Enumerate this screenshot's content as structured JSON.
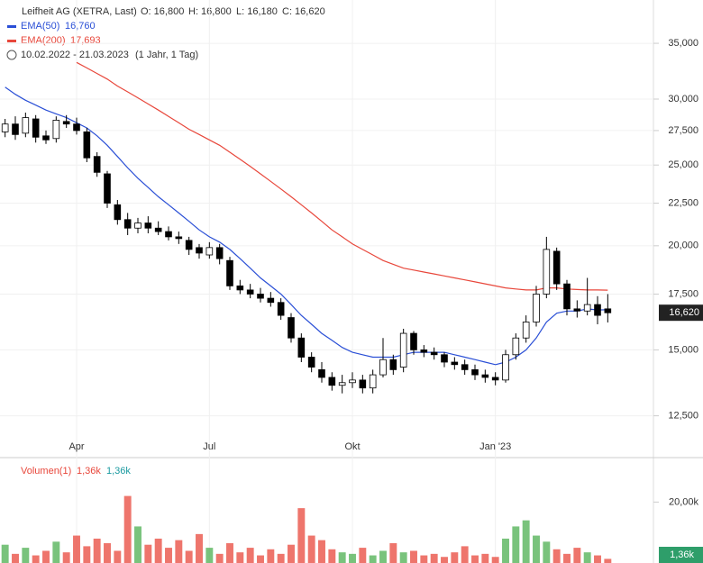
{
  "chart_data": [
    {
      "type": "candlestick",
      "title": "Leifheit AG (XETRA, Last)",
      "ohlc": {
        "open": "O: 16,800",
        "high": "H: 16,800",
        "low": "L: 16,180",
        "close": "C: 16,620"
      },
      "range": "10.02.2022 - 21.03.2023",
      "period": "(1 Jahr, 1 Tag)",
      "categories": [
        null,
        null,
        null,
        null,
        null,
        null,
        null,
        "Apr",
        null,
        null,
        null,
        null,
        null,
        null,
        null,
        null,
        null,
        null,
        null,
        null,
        "Jul",
        null,
        null,
        null,
        null,
        null,
        null,
        null,
        null,
        null,
        null,
        null,
        null,
        null,
        "Okt",
        null,
        null,
        null,
        null,
        null,
        null,
        null,
        null,
        null,
        null,
        null,
        null,
        null,
        "Jan '23",
        null,
        null,
        null,
        null,
        null,
        null,
        null,
        null,
        null,
        null,
        null
      ],
      "open": [
        27400,
        28000,
        27300,
        28400,
        27100,
        26900,
        28200,
        28000,
        27400,
        25600,
        24400,
        22400,
        21500,
        21000,
        21300,
        21000,
        20800,
        20500,
        20300,
        19900,
        19500,
        19900,
        19200,
        17900,
        17700,
        17500,
        17300,
        17100,
        16400,
        15500,
        14700,
        14200,
        13900,
        13600,
        13700,
        13800,
        13500,
        14000,
        14600,
        14300,
        15700,
        15000,
        14900,
        14800,
        14500,
        14400,
        14200,
        14000,
        13900,
        13800,
        14800,
        15500,
        16200,
        17500,
        19700,
        18000,
        16800,
        16700,
        17000,
        16800
      ],
      "high": [
        28400,
        28600,
        28900,
        28700,
        27500,
        28600,
        28700,
        28500,
        27700,
        25900,
        24600,
        22700,
        21900,
        21600,
        21700,
        21400,
        21100,
        20800,
        20500,
        20100,
        20200,
        20100,
        19400,
        18200,
        18000,
        17800,
        17600,
        17300,
        16600,
        15700,
        14900,
        14500,
        14100,
        14000,
        14100,
        14000,
        14200,
        15500,
        14800,
        15900,
        15800,
        15200,
        15100,
        14900,
        14700,
        14600,
        14400,
        14200,
        14100,
        15000,
        15700,
        16500,
        17900,
        20500,
        19900,
        18200,
        17200,
        18300,
        17400,
        17500
      ],
      "low": [
        27000,
        26800,
        27000,
        26600,
        26500,
        26600,
        27700,
        27200,
        25200,
        24200,
        22200,
        21200,
        20600,
        20700,
        20700,
        20600,
        20300,
        20100,
        19500,
        19300,
        19300,
        19000,
        17700,
        17500,
        17300,
        17100,
        16900,
        16300,
        15300,
        14500,
        14100,
        13700,
        13400,
        13300,
        13500,
        13300,
        13300,
        13900,
        14000,
        14100,
        14800,
        14700,
        14600,
        14300,
        14200,
        14000,
        13800,
        13700,
        13600,
        13700,
        14600,
        15300,
        16000,
        17300,
        17700,
        16500,
        16400,
        16500,
        16100,
        16180
      ],
      "close": [
        28000,
        27200,
        28500,
        27000,
        26800,
        28300,
        28000,
        27500,
        25500,
        24500,
        22500,
        21500,
        21000,
        21300,
        21000,
        20800,
        20500,
        20400,
        19800,
        19600,
        19900,
        19300,
        17900,
        17700,
        17500,
        17300,
        17100,
        16500,
        15500,
        14700,
        14300,
        13900,
        13600,
        13700,
        13800,
        13500,
        14000,
        14600,
        14200,
        15700,
        15000,
        14900,
        14800,
        14500,
        14400,
        14200,
        14000,
        13900,
        13800,
        14800,
        15500,
        16200,
        17500,
        19800,
        18000,
        16800,
        16700,
        17000,
        16500,
        16620
      ],
      "last_price": {
        "value": 16620,
        "label": "16,620"
      },
      "series": [
        {
          "name": "EMA(50)",
          "last_label": "16,760",
          "color": "#2a4fd6",
          "values": [
            31000,
            30400,
            29900,
            29500,
            29100,
            28800,
            28500,
            28100,
            27700,
            27100,
            26400,
            25600,
            24800,
            24100,
            23500,
            22900,
            22400,
            21900,
            21400,
            20900,
            20500,
            20200,
            19800,
            19300,
            18800,
            18300,
            17900,
            17500,
            17000,
            16500,
            16100,
            15700,
            15400,
            15100,
            14900,
            14800,
            14700,
            14700,
            14700,
            14800,
            14900,
            14900,
            14900,
            14900,
            14800,
            14700,
            14600,
            14500,
            14400,
            14500,
            14700,
            15000,
            15500,
            16200,
            16600,
            16700,
            16700,
            16800,
            16750,
            16760
          ]
        },
        {
          "name": "EMA(200)",
          "last_label": "17,693",
          "color": "#e8473b",
          "values": [
            null,
            null,
            null,
            null,
            null,
            null,
            null,
            33200,
            32700,
            32200,
            31700,
            31100,
            30600,
            30100,
            29600,
            29100,
            28600,
            28100,
            27600,
            27200,
            26800,
            26400,
            25900,
            25400,
            24900,
            24400,
            23900,
            23400,
            22900,
            22400,
            21900,
            21400,
            20900,
            20500,
            20100,
            19800,
            19500,
            19200,
            19000,
            18800,
            18700,
            18600,
            18500,
            18400,
            18300,
            18200,
            18100,
            18000,
            17900,
            17800,
            17750,
            17700,
            17700,
            17800,
            17800,
            17750,
            17720,
            17700,
            17700,
            17693
          ]
        }
      ],
      "yscale": "log",
      "ylim": [
        12000,
        39450
      ],
      "yticks": [
        {
          "value": 12500,
          "label": "12,500"
        },
        {
          "value": 15000,
          "label": "15,000"
        },
        {
          "value": 17500,
          "label": "17,500"
        },
        {
          "value": 20000,
          "label": "20,000"
        },
        {
          "value": 22500,
          "label": "22,500"
        },
        {
          "value": 25000,
          "label": "25,000"
        },
        {
          "value": 27500,
          "label": "27,500"
        },
        {
          "value": 30000,
          "label": "30,000"
        },
        {
          "value": 35000,
          "label": "35,000"
        }
      ],
      "grid": true
    },
    {
      "type": "bar",
      "name": "Volumen(1)",
      "header_values": [
        "1,36k",
        "1,36k"
      ],
      "values": [
        6000,
        3000,
        5000,
        2500,
        4000,
        7000,
        3500,
        9000,
        5500,
        8000,
        6500,
        4000,
        22000,
        12000,
        6000,
        8000,
        5000,
        7500,
        4000,
        9500,
        5000,
        3000,
        6500,
        3500,
        5000,
        2500,
        4500,
        3000,
        6000,
        18000,
        9000,
        7500,
        4500,
        3500,
        3000,
        5000,
        2500,
        4000,
        6500,
        3500,
        4000,
        2500,
        3000,
        2000,
        3500,
        5500,
        2500,
        3000,
        2000,
        8000,
        12000,
        14000,
        9000,
        7000,
        4500,
        3000,
        5000,
        3500,
        2500,
        1360
      ],
      "last_value_label": "1,36k",
      "up_color": "#4caf50",
      "down_color": "#e8473b",
      "ylim": [
        0,
        34000
      ],
      "yticks": [
        {
          "value": 20000,
          "label": "20,00k"
        }
      ]
    }
  ]
}
